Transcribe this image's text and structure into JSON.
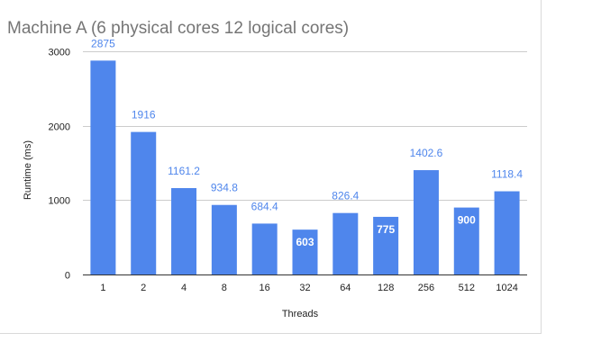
{
  "chart_data": {
    "type": "bar",
    "title": "Machine A (6 physical cores 12 logical cores)",
    "xlabel": "Threads",
    "ylabel": "Runtime (ms)",
    "categories": [
      "1",
      "2",
      "4",
      "8",
      "16",
      "32",
      "64",
      "128",
      "256",
      "512",
      "1024"
    ],
    "values": [
      2875,
      1916,
      1161.2,
      934.8,
      684.4,
      603,
      826.4,
      775,
      1402.6,
      900,
      1118.4
    ],
    "data_labels": [
      "2875",
      "1916",
      "1161.2",
      "934.8",
      "684.4",
      "603",
      "826.4",
      "775",
      "1402.6",
      "900",
      "1118.4"
    ],
    "ylim": [
      0,
      3000
    ],
    "yticks": [
      "0",
      "1000",
      "2000",
      "3000"
    ],
    "grid": true,
    "legend": "none",
    "colors": {
      "bar": "#4f86ec",
      "label": "#4f86ec",
      "inside_label": "#ffffff",
      "grid": "#cccccc",
      "axis": "#333333"
    }
  }
}
